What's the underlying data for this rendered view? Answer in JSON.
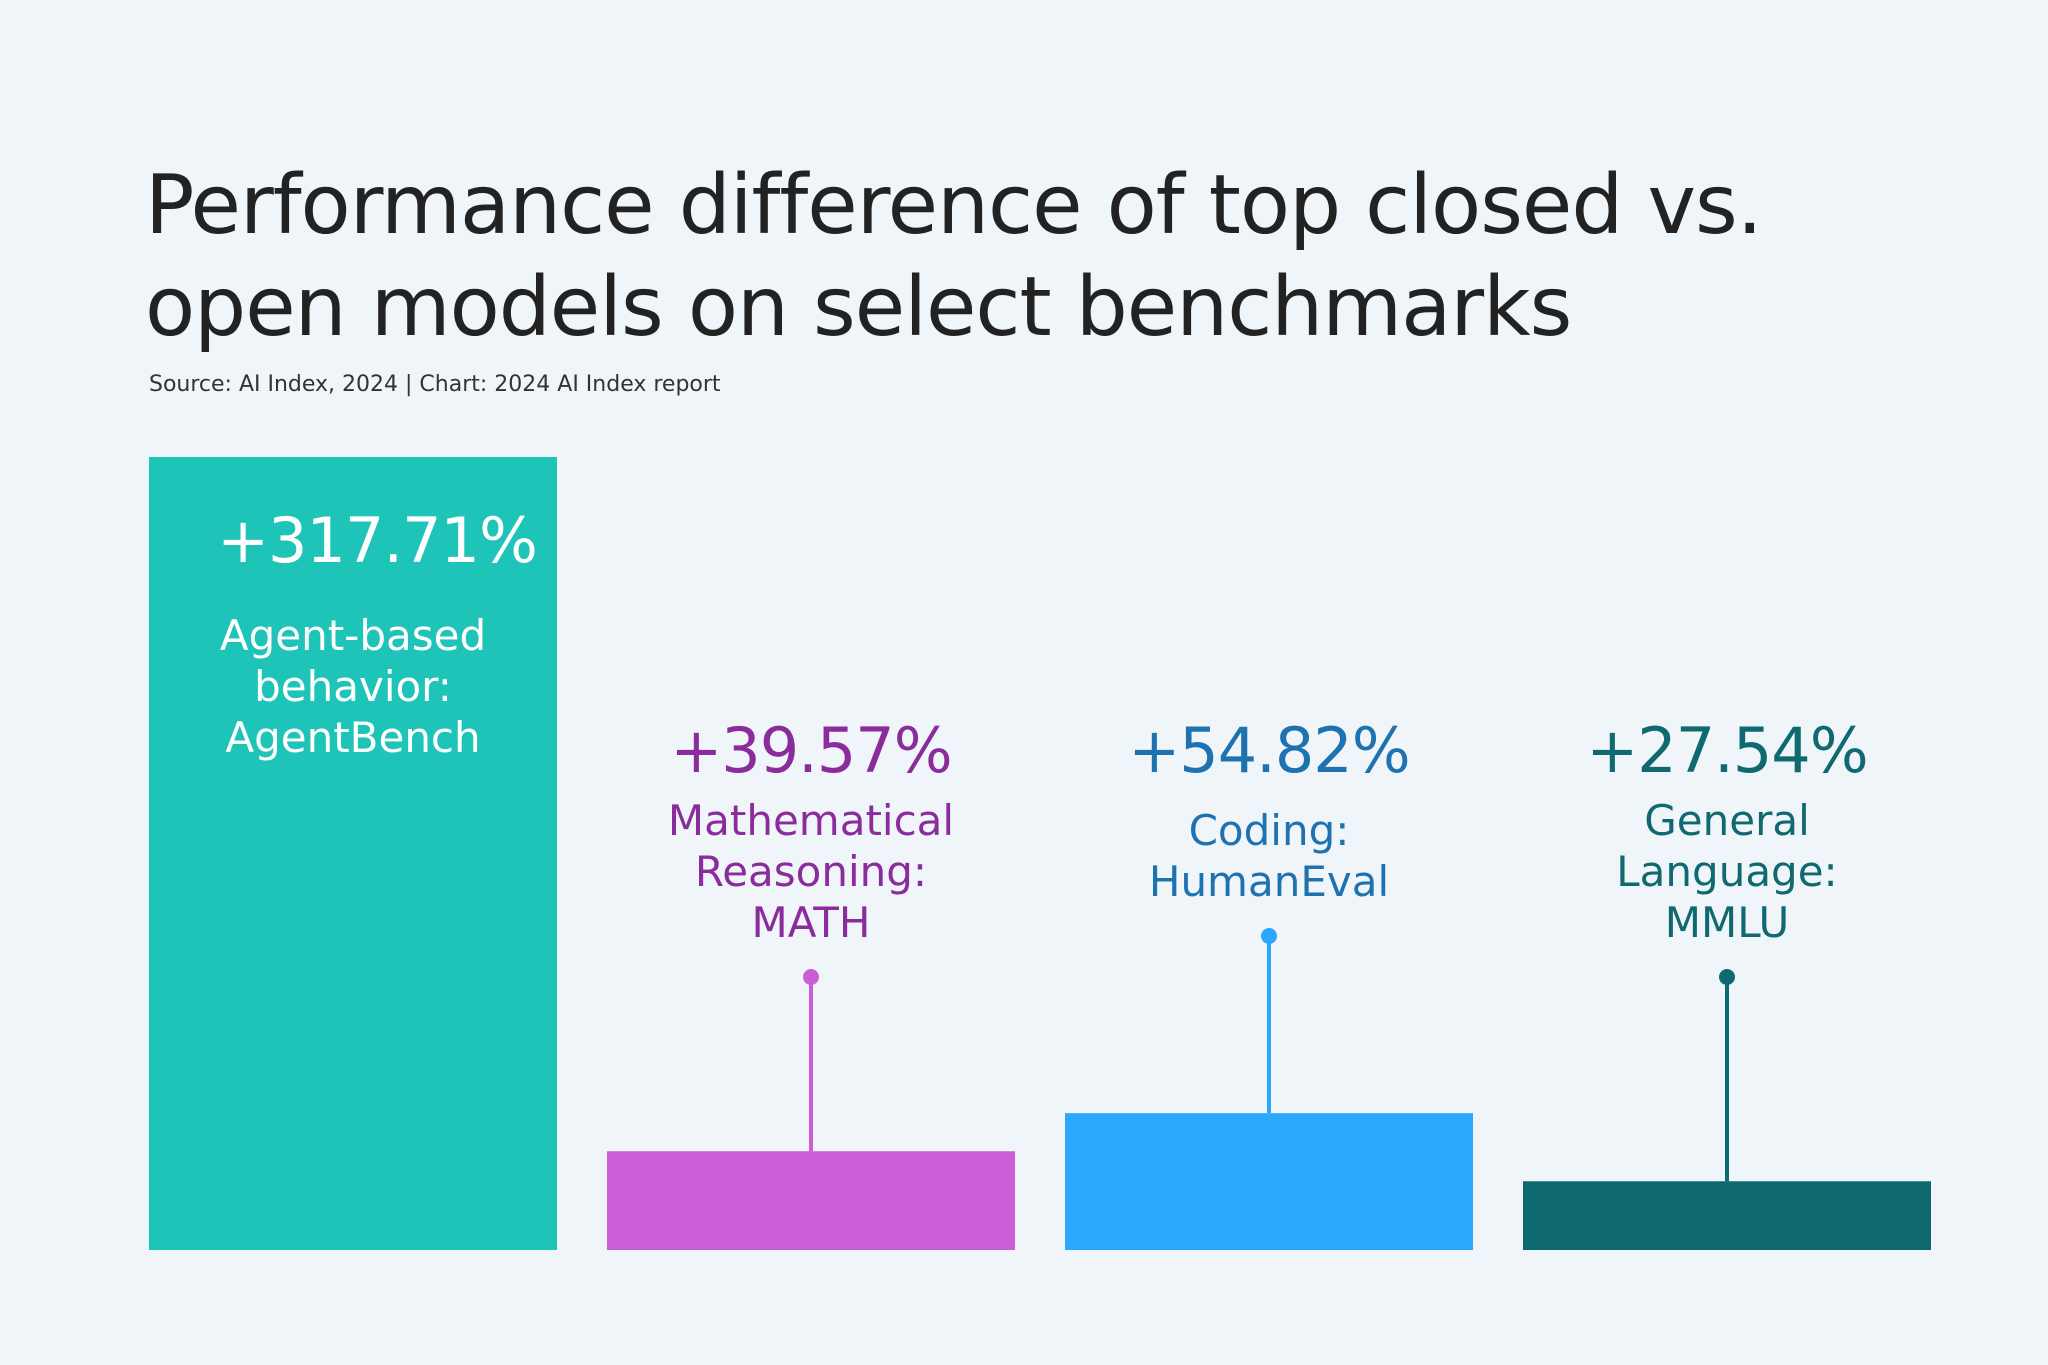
{
  "title": {
    "line1": "Performance difference of top closed vs.",
    "line2": "open models on select benchmarks"
  },
  "source": "Source: AI Index, 2024 | Chart: 2024 AI Index report",
  "chart_data": {
    "type": "bar",
    "categories": [
      [
        "Agent-based",
        "behavior:",
        "AgentBench"
      ],
      [
        "Mathematical",
        "Reasoning:",
        "MATH"
      ],
      [
        "Coding:",
        "HumanEval"
      ],
      [
        "General",
        "Language:",
        "MMLU"
      ]
    ],
    "values": [
      317.71,
      39.57,
      54.82,
      27.54
    ],
    "value_labels": [
      "+317.71%",
      "+39.57%",
      "+54.82%",
      "+27.54%"
    ],
    "colors": [
      "#1fc4b9",
      "#c95ed8",
      "#2ba8fb",
      "#0f6970"
    ],
    "label_colors": [
      "#ffffff",
      "#8b2c9c",
      "#1f72b0",
      "#0f6970"
    ],
    "title": "",
    "xlabel": "",
    "ylabel": "",
    "ylim": [
      0,
      317.71
    ]
  }
}
